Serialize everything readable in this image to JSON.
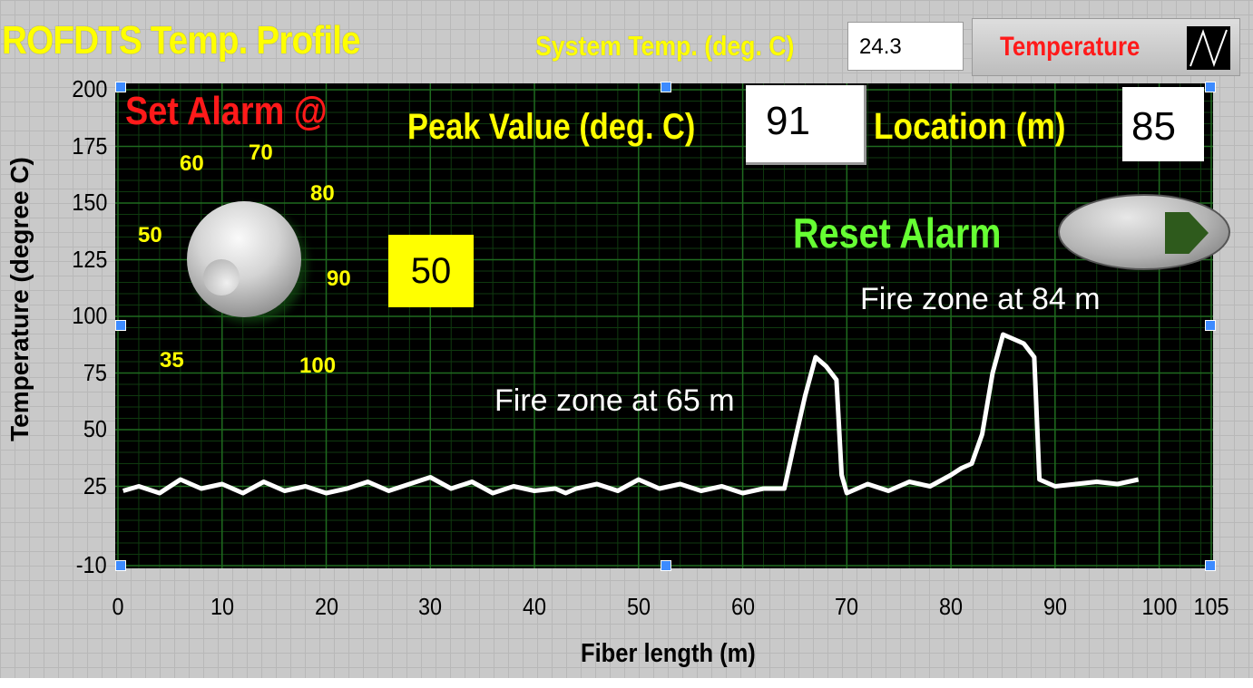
{
  "title": "ROFDTS Temp. Profile",
  "system_temp": {
    "label": "System Temp. (deg. C)",
    "value": "24.3"
  },
  "mode_button": {
    "label": "Temperature",
    "icon": "waveform-icon"
  },
  "alarm": {
    "label": "Set Alarm @",
    "knob_ticks": [
      "35",
      "50",
      "60",
      "70",
      "80",
      "90",
      "100"
    ],
    "value": "50"
  },
  "peak": {
    "label": "Peak Value (deg. C)",
    "value": "91"
  },
  "location": {
    "label": "Location (m)",
    "value": "85"
  },
  "reset": {
    "label": "Reset Alarm",
    "led_color": "#2e5a1c"
  },
  "annotations": {
    "zone1": "Fire zone at 65 m",
    "zone2": "Fire zone at 84 m"
  },
  "colors": {
    "title": "#ffff00",
    "alarm_label": "#ff1a1a",
    "reset_label": "#66ff33",
    "plot_bg": "#000000",
    "grid": "#1f6b1f",
    "trace": "#ffffff"
  },
  "chart_data": {
    "type": "line",
    "xlabel": "Fiber length (m)",
    "ylabel": "Temperature (degree C)",
    "xlim": [
      0,
      105
    ],
    "ylim": [
      -10,
      200
    ],
    "x_ticks": [
      "0",
      "10",
      "20",
      "30",
      "40",
      "50",
      "60",
      "70",
      "80",
      "90",
      "100",
      "105"
    ],
    "y_ticks": [
      "200",
      "175",
      "150",
      "125",
      "100",
      "75",
      "50",
      "25",
      "-10"
    ],
    "grid": true,
    "series": [
      {
        "x": [
          0.5,
          2,
          4,
          6,
          8,
          10,
          12,
          14,
          16,
          18,
          20,
          22,
          24,
          26,
          28,
          30,
          32,
          34,
          36,
          38,
          40,
          42,
          43,
          44,
          46,
          48,
          50,
          52,
          54,
          56,
          58,
          60,
          62,
          64,
          65,
          66,
          67,
          68,
          69,
          69.5,
          70,
          72,
          74,
          76,
          78,
          80,
          81,
          82,
          83,
          84,
          85,
          86,
          87,
          88,
          88.5,
          89,
          90,
          92,
          94,
          96,
          98
        ],
        "y": [
          23,
          25,
          22,
          28,
          24,
          26,
          22,
          27,
          23,
          25,
          22,
          24,
          27,
          23,
          26,
          29,
          24,
          27,
          22,
          25,
          23,
          24,
          22,
          24,
          26,
          23,
          28,
          24,
          26,
          23,
          25,
          22,
          24,
          24,
          45,
          65,
          82,
          78,
          72,
          30,
          22,
          26,
          23,
          27,
          25,
          30,
          33,
          35,
          48,
          75,
          92,
          90,
          88,
          82,
          28,
          27,
          25,
          26,
          27,
          26,
          28
        ]
      }
    ]
  }
}
